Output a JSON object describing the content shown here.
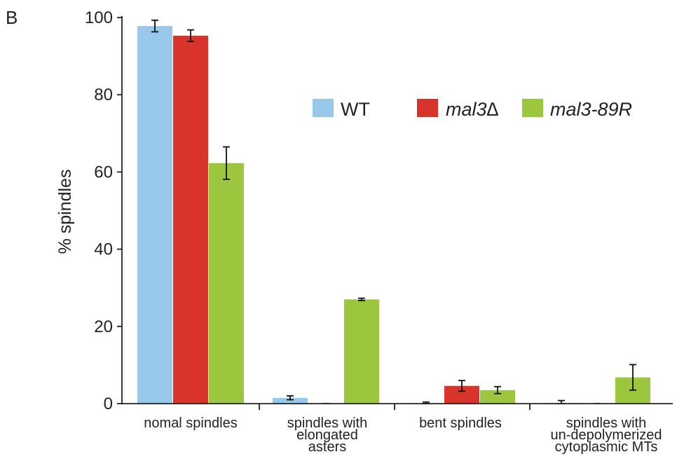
{
  "panel_label": "B",
  "chart_data": {
    "type": "bar",
    "ylabel": "% spindles",
    "ylim": [
      0,
      100
    ],
    "yticks": [
      0,
      20,
      40,
      60,
      80,
      100
    ],
    "categories": [
      [
        "nomal spindles"
      ],
      [
        "spindles with",
        "elongated",
        "asters"
      ],
      [
        "bent spindles"
      ],
      [
        "spindles with",
        "un-depolymerized",
        "cytoplasmic MTs"
      ]
    ],
    "series": [
      {
        "name": "WT",
        "color": "#98c8ea",
        "values": [
          97.8,
          1.5,
          0.1,
          0.2
        ],
        "errors": [
          1.5,
          0.5,
          0.3,
          0.6
        ]
      },
      {
        "name": "mal3∆",
        "color": "#d9342b",
        "values": [
          95.3,
          0.0,
          4.6,
          0.0
        ],
        "errors": [
          1.5,
          0.0,
          1.4,
          0.0
        ]
      },
      {
        "name": "mal3-89R",
        "color": "#9bc63d",
        "values": [
          62.3,
          27.0,
          3.5,
          6.8
        ],
        "errors": [
          4.2,
          0.3,
          0.9,
          3.3
        ]
      }
    ],
    "legend_position": "top-right",
    "grid": false
  }
}
